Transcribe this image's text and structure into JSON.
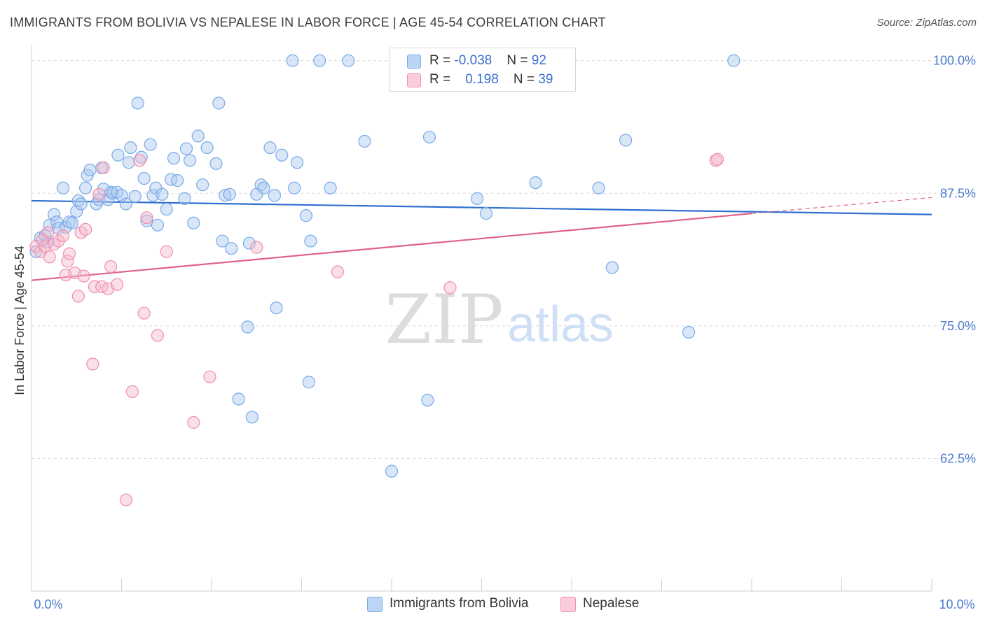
{
  "title": "IMMIGRANTS FROM BOLIVIA VS NEPALESE IN LABOR FORCE | AGE 45-54 CORRELATION CHART",
  "source": "Source: ZipAtlas.com",
  "watermark": {
    "zip": "ZIP",
    "atlas": "atlas"
  },
  "legend": {
    "rows": [
      {
        "r_label": "R = ",
        "r_value": "-0.038",
        "n_label": "N = ",
        "n_value": "92"
      },
      {
        "r_label": "R = ",
        "r_value": "0.198",
        "n_label": "N = ",
        "n_value": "39"
      }
    ]
  },
  "bottom_legend": [
    {
      "label": "Immigrants from Bolivia",
      "color": "#a8c8f0"
    },
    {
      "label": "Nepalese",
      "color": "#f7b8cc"
    }
  ],
  "chart_data": {
    "type": "scatter",
    "title": "IMMIGRANTS FROM BOLIVIA VS NEPALESE IN LABOR FORCE | AGE 45-54 CORRELATION CHART",
    "xlabel": "",
    "ylabel": "In Labor Force | Age 45-54",
    "xlim": [
      0,
      10
    ],
    "ylim": [
      50,
      101.5
    ],
    "x_tick_labels": [
      "0.0%",
      "10.0%"
    ],
    "y_ticks": [
      62.5,
      75.0,
      87.5,
      100.0
    ],
    "y_tick_labels": [
      "62.5%",
      "75.0%",
      "87.5%",
      "100.0%"
    ],
    "series": [
      {
        "name": "Immigrants from Bolivia",
        "color": "#7aaae8",
        "fill": "#a8c8f0",
        "trend": {
          "x0": 0,
          "y0": 86.8,
          "x1": 10,
          "y1": 85.5,
          "color": "#2f6fcf"
        },
        "points": [
          [
            0.05,
            82.0
          ],
          [
            0.1,
            83.3
          ],
          [
            0.15,
            83.5
          ],
          [
            0.18,
            82.9
          ],
          [
            0.2,
            84.5
          ],
          [
            0.25,
            85.5
          ],
          [
            0.28,
            84.8
          ],
          [
            0.3,
            84.2
          ],
          [
            0.35,
            88.0
          ],
          [
            0.38,
            84.3
          ],
          [
            0.42,
            84.8
          ],
          [
            0.45,
            84.7
          ],
          [
            0.5,
            85.8
          ],
          [
            0.52,
            86.8
          ],
          [
            0.55,
            86.5
          ],
          [
            0.6,
            88.0
          ],
          [
            0.62,
            89.2
          ],
          [
            0.65,
            89.7
          ],
          [
            0.72,
            86.5
          ],
          [
            0.75,
            86.9
          ],
          [
            0.78,
            89.9
          ],
          [
            0.8,
            87.9
          ],
          [
            0.85,
            86.9
          ],
          [
            0.88,
            87.6
          ],
          [
            0.9,
            87.5
          ],
          [
            0.95,
            87.6
          ],
          [
            0.96,
            91.1
          ],
          [
            1.0,
            87.3
          ],
          [
            1.05,
            86.5
          ],
          [
            1.08,
            90.4
          ],
          [
            1.1,
            91.8
          ],
          [
            1.15,
            87.2
          ],
          [
            1.18,
            96.0
          ],
          [
            1.22,
            90.9
          ],
          [
            1.25,
            88.9
          ],
          [
            1.28,
            84.9
          ],
          [
            1.32,
            92.1
          ],
          [
            1.35,
            87.3
          ],
          [
            1.38,
            88.0
          ],
          [
            1.4,
            84.5
          ],
          [
            1.45,
            87.4
          ],
          [
            1.5,
            86.0
          ],
          [
            1.55,
            88.8
          ],
          [
            1.58,
            90.8
          ],
          [
            1.62,
            88.7
          ],
          [
            1.7,
            87.0
          ],
          [
            1.72,
            91.7
          ],
          [
            1.76,
            90.6
          ],
          [
            1.8,
            84.7
          ],
          [
            1.85,
            92.9
          ],
          [
            1.9,
            88.3
          ],
          [
            1.95,
            91.8
          ],
          [
            2.05,
            90.3
          ],
          [
            2.08,
            96.0
          ],
          [
            2.12,
            83.0
          ],
          [
            2.15,
            87.3
          ],
          [
            2.2,
            87.4
          ],
          [
            2.22,
            82.3
          ],
          [
            2.3,
            68.1
          ],
          [
            2.4,
            74.9
          ],
          [
            2.42,
            82.8
          ],
          [
            2.45,
            66.4
          ],
          [
            2.5,
            87.4
          ],
          [
            2.55,
            88.3
          ],
          [
            2.58,
            88.0
          ],
          [
            2.65,
            91.8
          ],
          [
            2.7,
            87.3
          ],
          [
            2.72,
            76.7
          ],
          [
            2.78,
            91.1
          ],
          [
            2.9,
            100.0
          ],
          [
            2.92,
            88.0
          ],
          [
            2.95,
            90.4
          ],
          [
            3.05,
            85.4
          ],
          [
            3.08,
            69.7
          ],
          [
            3.1,
            83.0
          ],
          [
            3.2,
            100.0
          ],
          [
            3.32,
            88.0
          ],
          [
            3.52,
            100.0
          ],
          [
            3.7,
            92.4
          ],
          [
            4.0,
            61.3
          ],
          [
            4.4,
            68.0
          ],
          [
            4.42,
            92.8
          ],
          [
            4.95,
            87.0
          ],
          [
            5.05,
            85.6
          ],
          [
            5.6,
            88.5
          ],
          [
            6.3,
            88.0
          ],
          [
            6.45,
            80.5
          ],
          [
            6.6,
            92.5
          ],
          [
            7.3,
            74.4
          ],
          [
            7.8,
            100.0
          ]
        ]
      },
      {
        "name": "Nepalese",
        "color": "#ef8fae",
        "fill": "#f7b8cc",
        "trend": {
          "x0": 0,
          "y0": 79.3,
          "x1": 8.0,
          "y1": 85.6,
          "color": "#e0608e"
        },
        "trend_extension": {
          "x0": 8.0,
          "y0": 85.6,
          "x1": 10,
          "y1": 87.1
        },
        "points": [
          [
            0.05,
            82.5
          ],
          [
            0.1,
            82.0
          ],
          [
            0.15,
            82.5
          ],
          [
            0.18,
            83.8
          ],
          [
            0.2,
            81.5
          ],
          [
            0.25,
            82.7
          ],
          [
            0.3,
            83.0
          ],
          [
            0.35,
            83.5
          ],
          [
            0.38,
            79.8
          ],
          [
            0.4,
            81.1
          ],
          [
            0.42,
            81.8
          ],
          [
            0.48,
            80.0
          ],
          [
            0.52,
            77.8
          ],
          [
            0.55,
            83.8
          ],
          [
            0.58,
            79.7
          ],
          [
            0.6,
            84.1
          ],
          [
            0.68,
            71.4
          ],
          [
            0.7,
            78.7
          ],
          [
            0.75,
            87.4
          ],
          [
            0.78,
            78.7
          ],
          [
            0.8,
            89.9
          ],
          [
            0.85,
            78.5
          ],
          [
            0.88,
            80.6
          ],
          [
            0.95,
            78.9
          ],
          [
            1.05,
            58.6
          ],
          [
            1.12,
            68.8
          ],
          [
            1.2,
            90.6
          ],
          [
            1.25,
            76.2
          ],
          [
            1.28,
            85.2
          ],
          [
            1.4,
            74.1
          ],
          [
            1.5,
            82.0
          ],
          [
            1.8,
            65.9
          ],
          [
            1.98,
            70.2
          ],
          [
            2.5,
            82.4
          ],
          [
            3.4,
            80.1
          ],
          [
            4.65,
            78.6
          ],
          [
            7.6,
            90.6
          ],
          [
            7.62,
            90.7
          ],
          [
            0.12,
            83.1
          ]
        ]
      }
    ]
  }
}
